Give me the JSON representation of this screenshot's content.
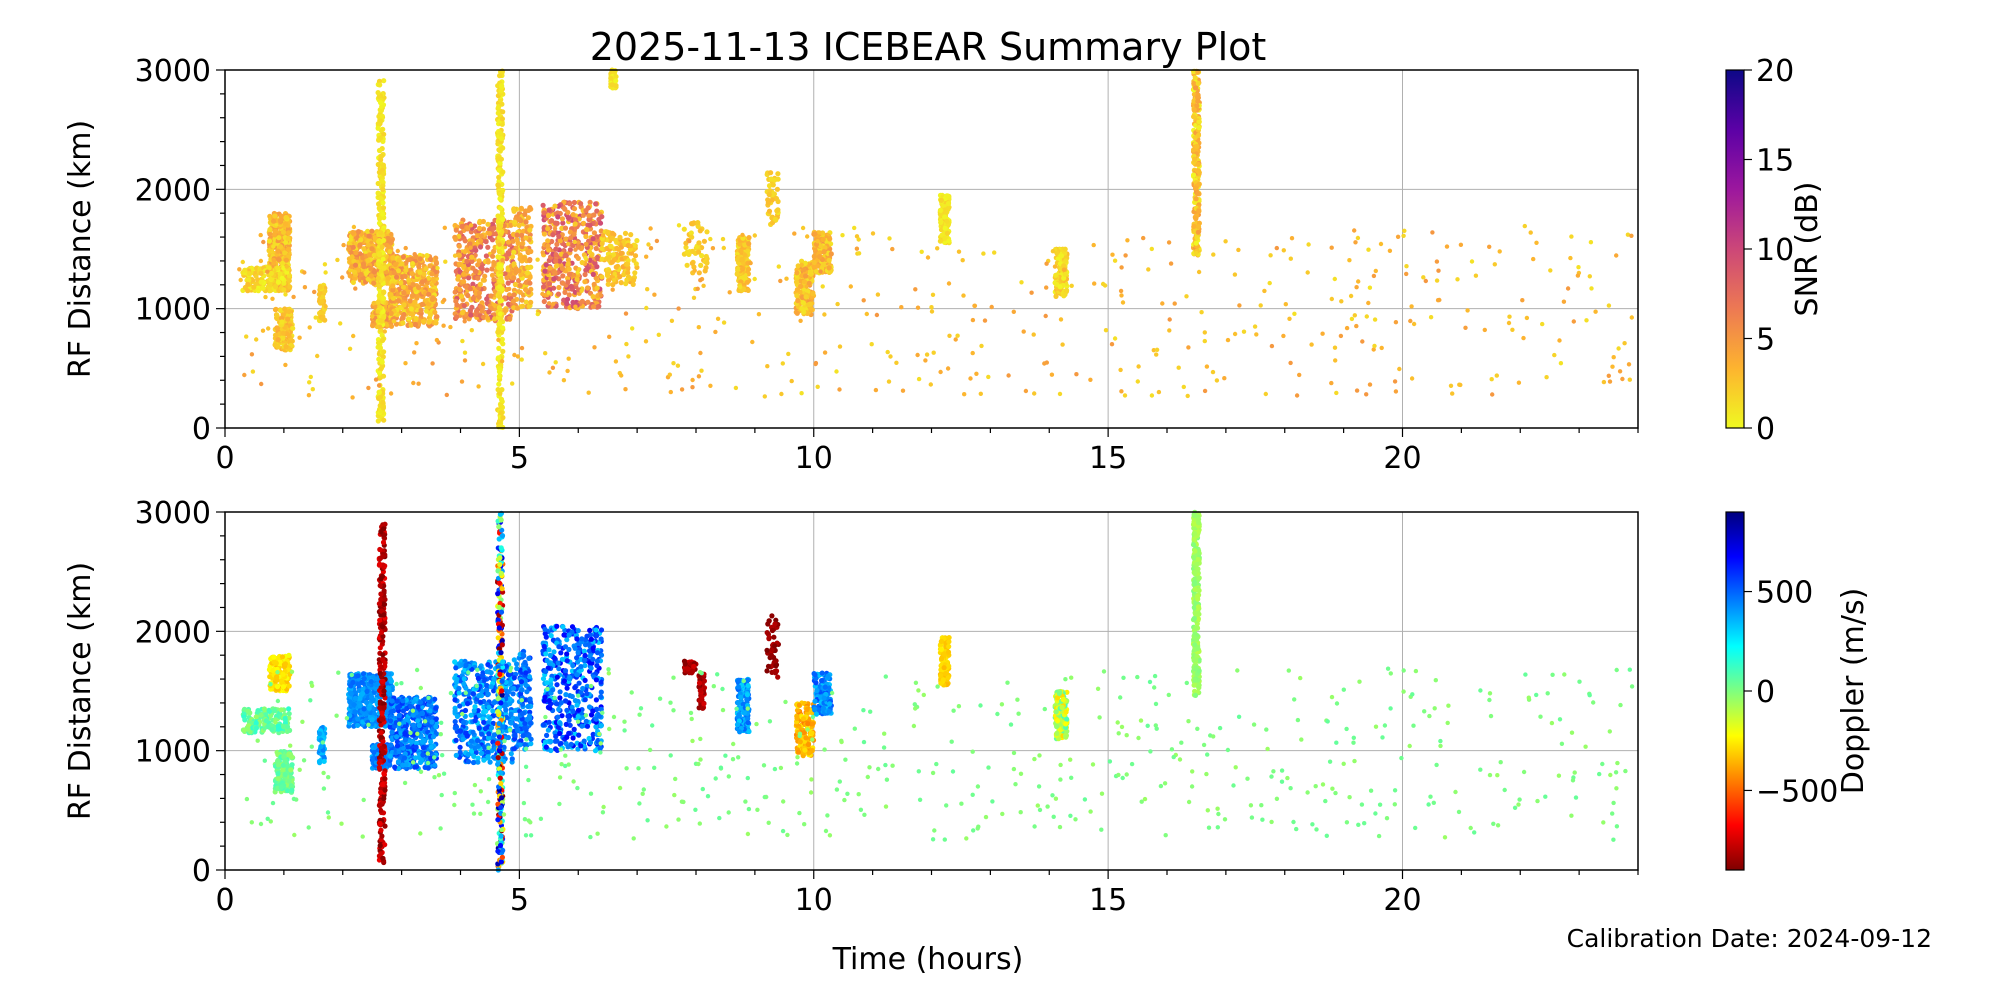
{
  "figure": {
    "title": "2025-11-13 ICEBEAR Summary Plot",
    "xlabel": "Time (hours)",
    "footer": "Calibration Date: 2024-09-12"
  },
  "chart_data": [
    {
      "type": "scatter",
      "name": "snr-panel",
      "ylabel": "RF Distance (km)",
      "xlim": [
        0,
        24
      ],
      "ylim": [
        0,
        3000
      ],
      "xticks": [
        0,
        5,
        10,
        15,
        20
      ],
      "yticks": [
        0,
        1000,
        2000,
        3000
      ],
      "grid": true,
      "colorbar": {
        "label": "SNR (dB)",
        "range": [
          0,
          20
        ],
        "ticks": [
          0,
          5,
          10,
          15,
          20
        ],
        "colormap": "plasma_r",
        "colors": [
          "#f0f921",
          "#fdb42f",
          "#ed7953",
          "#cc4778",
          "#9c179e",
          "#5c01a6",
          "#0d0887"
        ]
      },
      "value_field": "snr_db",
      "clusters": [
        {
          "t": [
            0.75,
            1.1
          ],
          "r": [
            1150,
            1800
          ],
          "snr_db": [
            1,
            5
          ],
          "density": "high"
        },
        {
          "t": [
            0.3,
            1.1
          ],
          "r": [
            1150,
            1350
          ],
          "snr_db": [
            0,
            3
          ],
          "density": "medium"
        },
        {
          "t": [
            0.85,
            1.15
          ],
          "r": [
            650,
            1000
          ],
          "snr_db": [
            1,
            4
          ],
          "density": "medium"
        },
        {
          "t": [
            1.6,
            1.7
          ],
          "r": [
            900,
            1200
          ],
          "snr_db": [
            1,
            3
          ],
          "density": "low"
        },
        {
          "t": [
            2.1,
            2.85
          ],
          "r": [
            1200,
            1650
          ],
          "snr_db": [
            1,
            6
          ],
          "density": "high"
        },
        {
          "t": [
            2.5,
            2.8
          ],
          "r": [
            850,
            1050
          ],
          "snr_db": [
            2,
            7
          ],
          "density": "medium"
        },
        {
          "t": [
            2.6,
            2.7
          ],
          "r": [
            50,
            2950
          ],
          "snr_db": [
            0,
            2
          ],
          "density": "column"
        },
        {
          "t": [
            2.8,
            3.6
          ],
          "r": [
            850,
            1450
          ],
          "snr_db": [
            1,
            6
          ],
          "density": "high"
        },
        {
          "t": [
            3.9,
            4.9
          ],
          "r": [
            900,
            1750
          ],
          "snr_db": [
            2,
            9
          ],
          "density": "high"
        },
        {
          "t": [
            4.63,
            4.72
          ],
          "r": [
            0,
            3000
          ],
          "snr_db": [
            0,
            2
          ],
          "density": "column"
        },
        {
          "t": [
            4.9,
            5.2
          ],
          "r": [
            1000,
            1850
          ],
          "snr_db": [
            1,
            6
          ],
          "density": "medium"
        },
        {
          "t": [
            5.4,
            6.4
          ],
          "r": [
            1000,
            1900
          ],
          "snr_db": [
            2,
            10
          ],
          "density": "high"
        },
        {
          "t": [
            6.4,
            7.0
          ],
          "r": [
            1200,
            1650
          ],
          "snr_db": [
            1,
            4
          ],
          "density": "medium"
        },
        {
          "t": [
            6.55,
            6.65
          ],
          "r": [
            2850,
            3000
          ],
          "snr_db": [
            0,
            2
          ],
          "density": "low"
        },
        {
          "t": [
            7.8,
            8.2
          ],
          "r": [
            1300,
            1750
          ],
          "snr_db": [
            1,
            3
          ],
          "density": "low"
        },
        {
          "t": [
            8.7,
            8.9
          ],
          "r": [
            1150,
            1600
          ],
          "snr_db": [
            1,
            4
          ],
          "density": "medium"
        },
        {
          "t": [
            9.2,
            9.4
          ],
          "r": [
            1700,
            2150
          ],
          "snr_db": [
            1,
            3
          ],
          "density": "low"
        },
        {
          "t": [
            9.7,
            10.0
          ],
          "r": [
            950,
            1400
          ],
          "snr_db": [
            1,
            5
          ],
          "density": "medium"
        },
        {
          "t": [
            10.0,
            10.3
          ],
          "r": [
            1300,
            1650
          ],
          "snr_db": [
            1,
            5
          ],
          "density": "medium"
        },
        {
          "t": [
            12.15,
            12.3
          ],
          "r": [
            1550,
            1950
          ],
          "snr_db": [
            0,
            2
          ],
          "density": "medium"
        },
        {
          "t": [
            14.1,
            14.3
          ],
          "r": [
            1100,
            1500
          ],
          "snr_db": [
            0,
            3
          ],
          "density": "medium"
        },
        {
          "t": [
            16.45,
            16.55
          ],
          "r": [
            1450,
            3000
          ],
          "snr_db": [
            0,
            5
          ],
          "density": "column"
        },
        {
          "t": [
            0.2,
            23.9
          ],
          "r": [
            250,
            1700
          ],
          "snr_db": [
            1,
            5
          ],
          "density": "background"
        }
      ]
    },
    {
      "type": "scatter",
      "name": "doppler-panel",
      "ylabel": "RF Distance (km)",
      "xlim": [
        0,
        24
      ],
      "ylim": [
        0,
        3000
      ],
      "xticks": [
        0,
        5,
        10,
        15,
        20
      ],
      "yticks": [
        0,
        1000,
        2000,
        3000
      ],
      "grid": true,
      "colorbar": {
        "label": "Doppler (m/s)",
        "range": [
          -900,
          900
        ],
        "ticks": [
          -500,
          0,
          500
        ],
        "tick_labels": [
          "−500",
          "0",
          "500"
        ],
        "colormap": "jet_r",
        "colors": [
          "#7f0000",
          "#ff0000",
          "#ff7f00",
          "#ffff00",
          "#7fff7f",
          "#00ffff",
          "#007fff",
          "#0000ff",
          "#00007f"
        ]
      },
      "value_field": "doppler_ms",
      "clusters": [
        {
          "t": [
            0.75,
            1.1
          ],
          "r": [
            1500,
            1800
          ],
          "doppler_ms": [
            -350,
            -200
          ],
          "density": "medium"
        },
        {
          "t": [
            0.3,
            1.1
          ],
          "r": [
            1150,
            1350
          ],
          "doppler_ms": [
            -50,
            150
          ],
          "density": "medium"
        },
        {
          "t": [
            0.85,
            1.15
          ],
          "r": [
            650,
            1000
          ],
          "doppler_ms": [
            -50,
            100
          ],
          "density": "medium"
        },
        {
          "t": [
            1.6,
            1.7
          ],
          "r": [
            900,
            1200
          ],
          "doppler_ms": [
            300,
            450
          ],
          "density": "low"
        },
        {
          "t": [
            2.1,
            2.85
          ],
          "r": [
            1200,
            1650
          ],
          "doppler_ms": [
            350,
            500
          ],
          "density": "high"
        },
        {
          "t": [
            2.5,
            2.8
          ],
          "r": [
            850,
            1050
          ],
          "doppler_ms": [
            350,
            550
          ],
          "density": "medium"
        },
        {
          "t": [
            2.62,
            2.72
          ],
          "r": [
            50,
            2900
          ],
          "doppler_ms": [
            -900,
            -700
          ],
          "density": "column"
        },
        {
          "t": [
            2.8,
            3.6
          ],
          "r": [
            850,
            1450
          ],
          "doppler_ms": [
            350,
            600
          ],
          "density": "high"
        },
        {
          "t": [
            3.9,
            4.9
          ],
          "r": [
            900,
            1750
          ],
          "doppler_ms": [
            300,
            600
          ],
          "density": "high"
        },
        {
          "t": [
            4.63,
            4.72
          ],
          "r": [
            0,
            3000
          ],
          "doppler_ms": [
            -900,
            900
          ],
          "density": "column"
        },
        {
          "t": [
            4.9,
            5.2
          ],
          "r": [
            1000,
            1850
          ],
          "doppler_ms": [
            350,
            600
          ],
          "density": "medium"
        },
        {
          "t": [
            5.4,
            6.4
          ],
          "r": [
            1000,
            2050
          ],
          "doppler_ms": [
            300,
            700
          ],
          "density": "high"
        },
        {
          "t": [
            7.8,
            8.0
          ],
          "r": [
            1650,
            1750
          ],
          "doppler_ms": [
            -900,
            -750
          ],
          "density": "low"
        },
        {
          "t": [
            8.05,
            8.15
          ],
          "r": [
            1350,
            1650
          ],
          "doppler_ms": [
            -900,
            -750
          ],
          "density": "low"
        },
        {
          "t": [
            8.7,
            8.9
          ],
          "r": [
            1150,
            1600
          ],
          "doppler_ms": [
            300,
            500
          ],
          "density": "medium"
        },
        {
          "t": [
            9.2,
            9.4
          ],
          "r": [
            1600,
            2150
          ],
          "doppler_ms": [
            -900,
            -800
          ],
          "density": "low"
        },
        {
          "t": [
            9.7,
            10.0
          ],
          "r": [
            950,
            1400
          ],
          "doppler_ms": [
            -450,
            -250
          ],
          "density": "medium"
        },
        {
          "t": [
            10.0,
            10.3
          ],
          "r": [
            1300,
            1650
          ],
          "doppler_ms": [
            300,
            550
          ],
          "density": "medium"
        },
        {
          "t": [
            12.15,
            12.3
          ],
          "r": [
            1550,
            1950
          ],
          "doppler_ms": [
            -350,
            -250
          ],
          "density": "medium"
        },
        {
          "t": [
            14.1,
            14.3
          ],
          "r": [
            1100,
            1500
          ],
          "doppler_ms": [
            -300,
            100
          ],
          "density": "medium"
        },
        {
          "t": [
            16.45,
            16.55
          ],
          "r": [
            1450,
            3000
          ],
          "doppler_ms": [
            -100,
            0
          ],
          "density": "column"
        },
        {
          "t": [
            0.2,
            23.9
          ],
          "r": [
            250,
            1700
          ],
          "doppler_ms": [
            -50,
            50
          ],
          "density": "background"
        }
      ]
    }
  ]
}
